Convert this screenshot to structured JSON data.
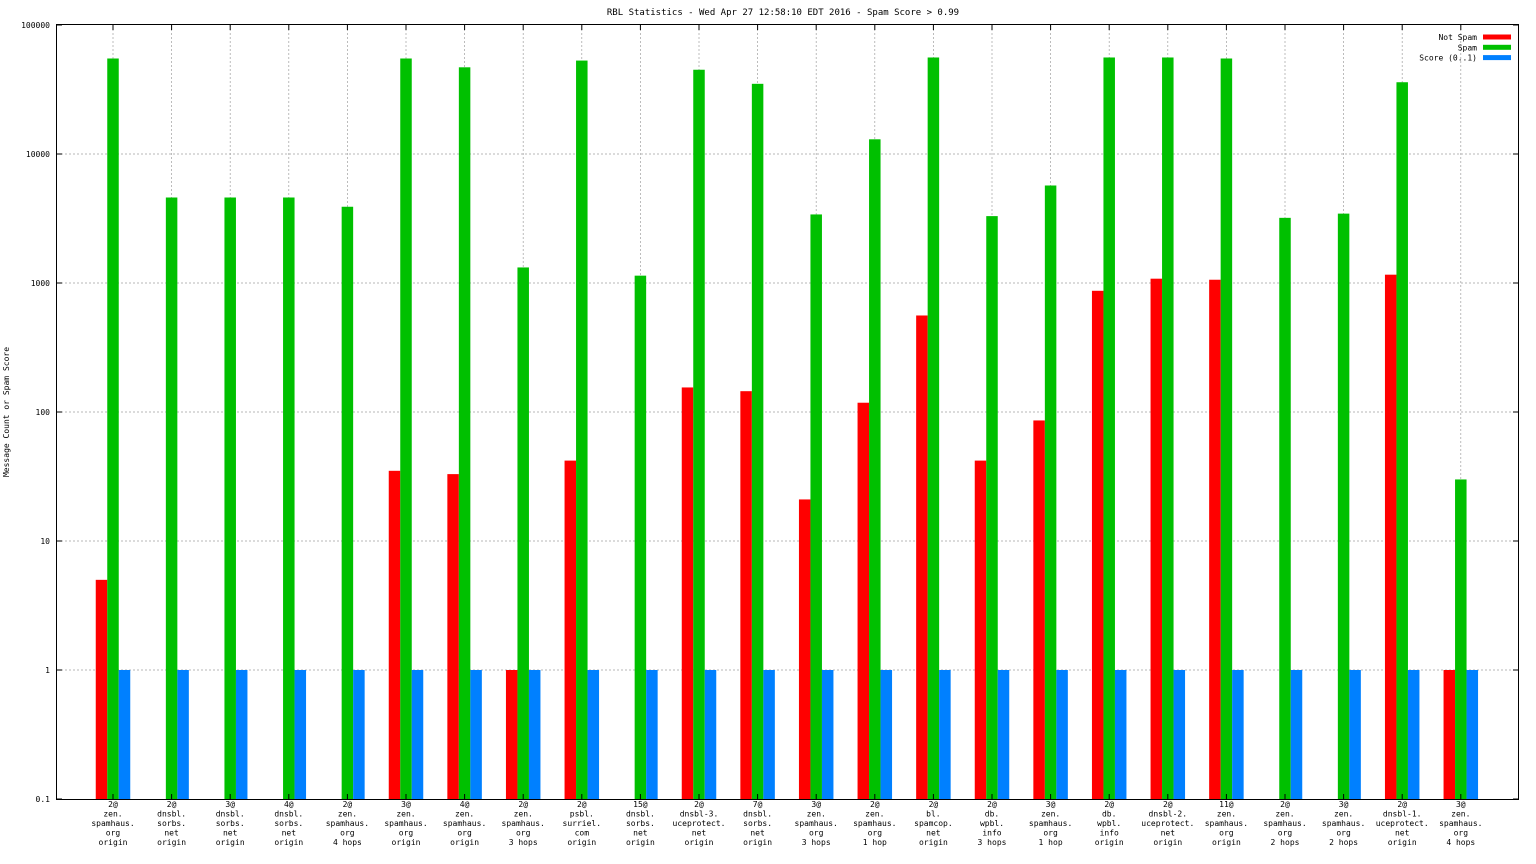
{
  "chart_data": {
    "type": "bar",
    "title": "RBL Statistics - Wed Apr 27 12:58:10 EDT 2016 - Spam Score > 0.99",
    "xlabel": "",
    "ylabel": "Message Count or Spam Score",
    "yscale": "log",
    "ylim": [
      0.1,
      100000
    ],
    "y_ticks": [
      0.1,
      1,
      10,
      100,
      1000,
      10000,
      100000
    ],
    "y_tick_labels": [
      "0.1",
      "1",
      "10",
      "100",
      "1000",
      "10000",
      "100000"
    ],
    "grid": true,
    "legend_position": "top-right",
    "categories": [
      [
        "2@",
        "zen.",
        "spamhaus.",
        "org",
        "origin"
      ],
      [
        "2@",
        "dnsbl.",
        "sorbs.",
        "net",
        "origin"
      ],
      [
        "3@",
        "dnsbl.",
        "sorbs.",
        "net",
        "origin"
      ],
      [
        "4@",
        "dnsbl.",
        "sorbs.",
        "net",
        "origin"
      ],
      [
        "2@",
        "zen.",
        "spamhaus.",
        "org",
        "4 hops"
      ],
      [
        "3@",
        "zen.",
        "spamhaus.",
        "org",
        "origin"
      ],
      [
        "4@",
        "zen.",
        "spamhaus.",
        "org",
        "origin"
      ],
      [
        "2@",
        "zen.",
        "spamhaus.",
        "org",
        "3 hops"
      ],
      [
        "2@",
        "psbl.",
        "surriel.",
        "com",
        "origin"
      ],
      [
        "15@",
        "dnsbl.",
        "sorbs.",
        "net",
        "origin"
      ],
      [
        "2@",
        "dnsbl-3.",
        "uceprotect.",
        "net",
        "origin"
      ],
      [
        "7@",
        "dnsbl.",
        "sorbs.",
        "net",
        "origin"
      ],
      [
        "3@",
        "zen.",
        "spamhaus.",
        "org",
        "3 hops"
      ],
      [
        "2@",
        "zen.",
        "spamhaus.",
        "org",
        "1 hop"
      ],
      [
        "2@",
        "bl.",
        "spamcop.",
        "net",
        "origin"
      ],
      [
        "2@",
        "db.",
        "wpbl.",
        "info",
        "3 hops"
      ],
      [
        "3@",
        "zen.",
        "spamhaus.",
        "org",
        "1 hop"
      ],
      [
        "2@",
        "db.",
        "wpbl.",
        "info",
        "origin"
      ],
      [
        "2@",
        "dnsbl-2.",
        "uceprotect.",
        "net",
        "origin"
      ],
      [
        "11@",
        "zen.",
        "spamhaus.",
        "org",
        "origin"
      ],
      [
        "2@",
        "zen.",
        "spamhaus.",
        "org",
        "2 hops"
      ],
      [
        "3@",
        "zen.",
        "spamhaus.",
        "org",
        "2 hops"
      ],
      [
        "2@",
        "dnsbl-1.",
        "uceprotect.",
        "net",
        "origin"
      ],
      [
        "3@",
        "zen.",
        "spamhaus.",
        "org",
        "4 hops"
      ]
    ],
    "series": [
      {
        "name": "Not Spam",
        "color": "#ff0000",
        "values": [
          5,
          null,
          null,
          null,
          null,
          35,
          33,
          1,
          42,
          null,
          155,
          145,
          21,
          118,
          560,
          42,
          86,
          870,
          1080,
          1060,
          null,
          null,
          1160,
          1
        ]
      },
      {
        "name": "Spam",
        "color": "#00c000",
        "values": [
          55000,
          4600,
          4600,
          4600,
          3900,
          55000,
          47000,
          1320,
          53000,
          1140,
          45000,
          35000,
          3400,
          13000,
          56000,
          3300,
          5700,
          56000,
          56000,
          55000,
          3200,
          3450,
          36000,
          30
        ]
      },
      {
        "name": "Score (0..1)",
        "color": "#0080ff",
        "values": [
          1,
          1,
          1,
          1,
          1,
          1,
          1,
          1,
          1,
          1,
          1,
          1,
          1,
          1,
          1,
          1,
          1,
          1,
          1,
          1,
          1,
          1,
          1,
          1
        ]
      }
    ]
  }
}
